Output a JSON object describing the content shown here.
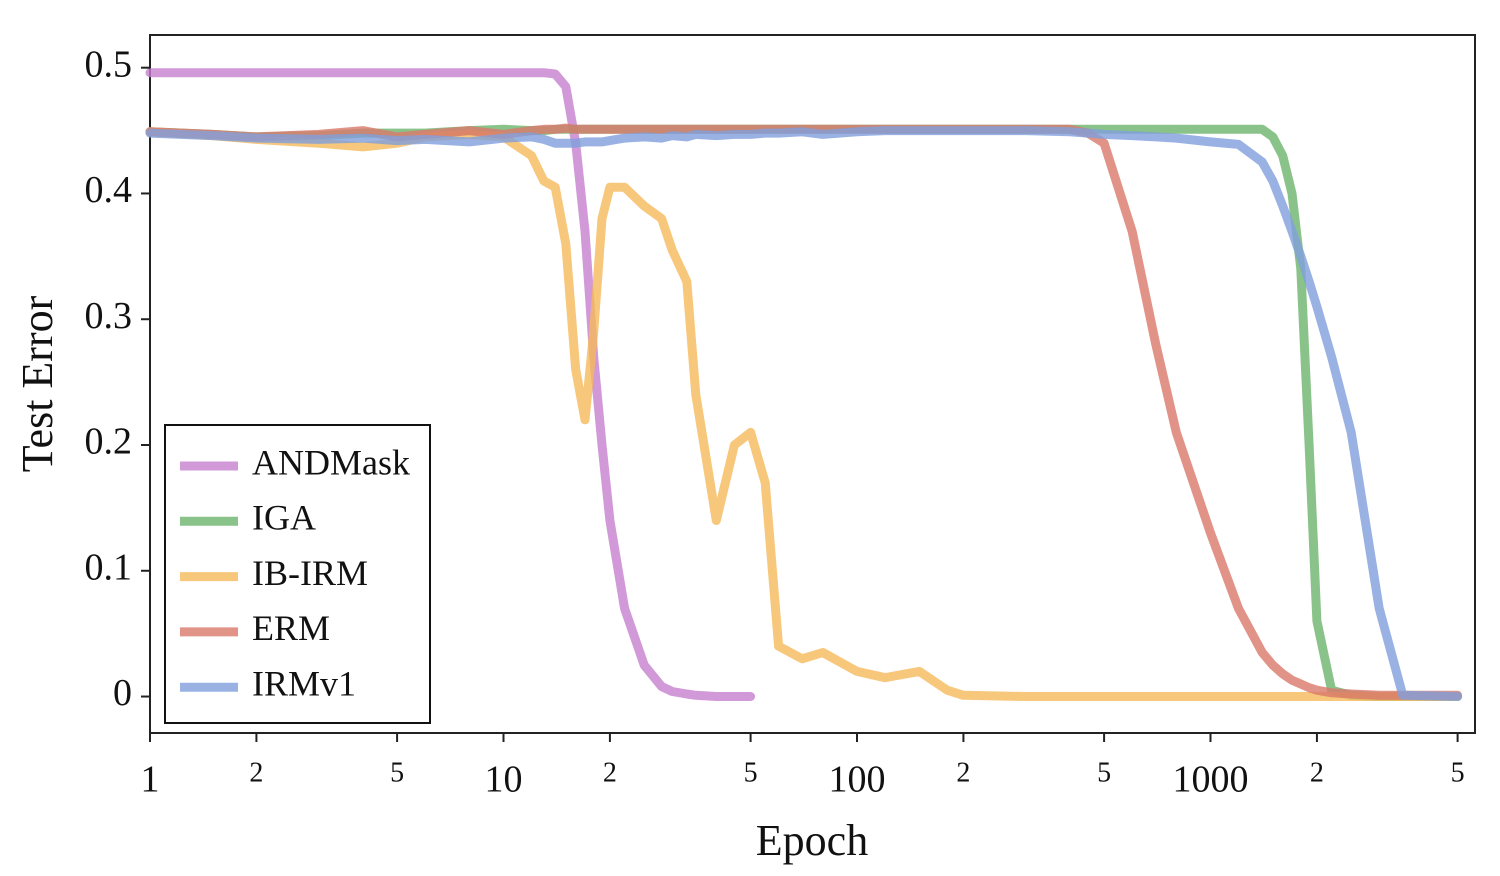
{
  "chart_data": {
    "type": "line",
    "xlabel": "Epoch",
    "ylabel": "Test Error",
    "xscale": "log",
    "legend": "lower left",
    "x": [
      1,
      1.5,
      2,
      3,
      4,
      5,
      6,
      8,
      10,
      12,
      13,
      14,
      15,
      16,
      17,
      18,
      19,
      20,
      22,
      25,
      28,
      30,
      33,
      35,
      40,
      45,
      50,
      55,
      60,
      70,
      80,
      100,
      120,
      150,
      180,
      200,
      300,
      400,
      450,
      500,
      600,
      700,
      800,
      1000,
      1200,
      1400,
      1500,
      1600,
      1700,
      1800,
      1900,
      2000,
      2200,
      2500,
      3000,
      3500,
      5000
    ],
    "xlim": [
      1,
      5600
    ],
    "xticks": [
      1,
      {
        "value": 2,
        "label": "2"
      },
      {
        "value": 5,
        "label": "5"
      },
      10,
      {
        "value": 20,
        "label": "2"
      },
      {
        "value": 50,
        "label": "5"
      },
      100,
      {
        "value": 200,
        "label": "2"
      },
      {
        "value": 500,
        "label": "5"
      },
      1000,
      {
        "value": 2000,
        "label": "2"
      },
      {
        "value": 5000,
        "label": "5"
      }
    ],
    "ylim": [
      -0.029,
      0.526
    ],
    "yticks": [
      0,
      0.1,
      0.2,
      0.3,
      0.4,
      0.5
    ],
    "series": [
      {
        "name": "ANDMask",
        "color": "#c57fce",
        "values": [
          0.496,
          0.496,
          0.496,
          0.496,
          0.496,
          0.496,
          0.496,
          0.496,
          0.496,
          0.496,
          0.496,
          0.495,
          0.485,
          0.44,
          0.37,
          0.27,
          0.2,
          0.14,
          0.07,
          0.025,
          0.008,
          0.004,
          0.002,
          0.001,
          0,
          0,
          0,
          null,
          null,
          null,
          null,
          null,
          null,
          null,
          null,
          null,
          null,
          null,
          null,
          null,
          null,
          null,
          null,
          null,
          null,
          null,
          null,
          null,
          null,
          null,
          null,
          null,
          null,
          null,
          null,
          null,
          null
        ]
      },
      {
        "name": "IGA",
        "color": "#6db46d",
        "values": [
          0.449,
          0.447,
          0.445,
          0.446,
          0.448,
          0.448,
          0.448,
          0.45,
          0.451,
          0.45,
          0.45,
          0.451,
          0.451,
          0.451,
          0.451,
          0.451,
          0.451,
          0.451,
          0.451,
          0.451,
          0.451,
          0.451,
          0.451,
          0.451,
          0.451,
          0.451,
          0.451,
          0.451,
          0.451,
          0.451,
          0.451,
          0.451,
          0.451,
          0.451,
          0.451,
          0.451,
          0.451,
          0.451,
          0.451,
          0.451,
          0.451,
          0.451,
          0.451,
          0.451,
          0.451,
          0.451,
          0.445,
          0.43,
          0.4,
          0.34,
          0.2,
          0.06,
          0.005,
          0.001,
          0,
          0,
          0
        ]
      },
      {
        "name": "IB-IRM",
        "color": "#f5b95a",
        "values": [
          0.449,
          0.446,
          0.443,
          0.44,
          0.437,
          0.44,
          0.445,
          0.447,
          0.445,
          0.43,
          0.41,
          0.405,
          0.36,
          0.26,
          0.22,
          0.29,
          0.38,
          0.405,
          0.405,
          0.39,
          0.38,
          0.355,
          0.33,
          0.24,
          0.14,
          0.2,
          0.21,
          0.17,
          0.04,
          0.03,
          0.035,
          0.02,
          0.015,
          0.02,
          0.005,
          0.001,
          0,
          0,
          0,
          0,
          0,
          0,
          0,
          0,
          0,
          0,
          0,
          0,
          0,
          0,
          0,
          0,
          0,
          0,
          0,
          0,
          0
        ]
      },
      {
        "name": "ERM",
        "color": "#d9786a",
        "values": [
          0.449,
          0.447,
          0.445,
          0.447,
          0.45,
          0.445,
          0.447,
          0.45,
          0.447,
          0.45,
          0.451,
          0.451,
          0.452,
          0.451,
          0.451,
          0.451,
          0.451,
          0.451,
          0.451,
          0.451,
          0.451,
          0.451,
          0.451,
          0.451,
          0.451,
          0.451,
          0.451,
          0.451,
          0.451,
          0.451,
          0.451,
          0.451,
          0.451,
          0.451,
          0.451,
          0.451,
          0.451,
          0.451,
          0.448,
          0.44,
          0.37,
          0.28,
          0.21,
          0.13,
          0.07,
          0.035,
          0.025,
          0.018,
          0.013,
          0.01,
          0.007,
          0.005,
          0.003,
          0.002,
          0.001,
          0.001,
          0.001
        ]
      },
      {
        "name": "IRMv1",
        "color": "#7f9fdc",
        "values": [
          0.448,
          0.446,
          0.444,
          0.443,
          0.444,
          0.442,
          0.443,
          0.441,
          0.444,
          0.445,
          0.443,
          0.44,
          0.44,
          0.44,
          0.441,
          0.441,
          0.441,
          0.442,
          0.444,
          0.445,
          0.444,
          0.446,
          0.445,
          0.447,
          0.446,
          0.447,
          0.447,
          0.448,
          0.448,
          0.449,
          0.447,
          0.449,
          0.45,
          0.45,
          0.45,
          0.45,
          0.45,
          0.449,
          0.448,
          0.447,
          0.446,
          0.445,
          0.444,
          0.441,
          0.439,
          0.425,
          0.41,
          0.39,
          0.37,
          0.35,
          0.33,
          0.31,
          0.27,
          0.21,
          0.07,
          0.001,
          0
        ]
      }
    ]
  }
}
